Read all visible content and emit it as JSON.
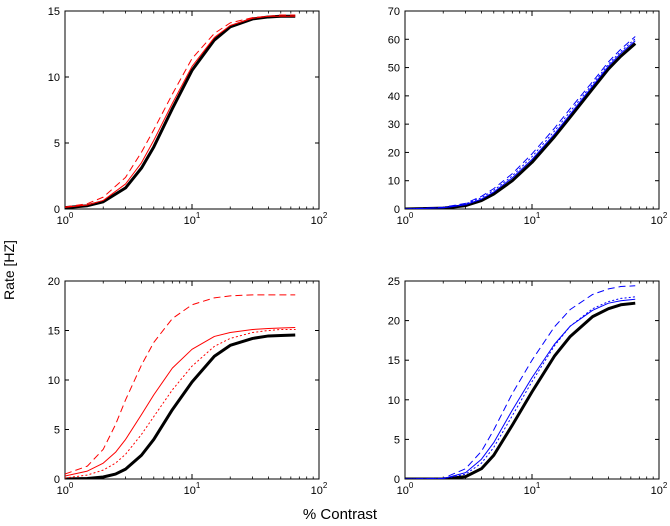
{
  "figure": {
    "ylabel": "Rate [HZ]",
    "xlabel": "% Contrast"
  },
  "chart_data": [
    {
      "type": "line",
      "position": "top-left",
      "xscale": "log",
      "xlim": [
        1,
        100
      ],
      "ylim": [
        0,
        15
      ],
      "xticks": [
        {
          "base": "10",
          "exp": "0"
        },
        {
          "base": "10",
          "exp": "1"
        },
        {
          "base": "10",
          "exp": "2"
        }
      ],
      "yticks": [
        "0",
        "5",
        "10",
        "15"
      ],
      "x": [
        1,
        1.5,
        2,
        3,
        4,
        5,
        7,
        10,
        15,
        20,
        30,
        40,
        50,
        65
      ],
      "series": [
        {
          "name": "black-solid",
          "color": "#000000",
          "style": "solid",
          "width": 3,
          "values": [
            0.1,
            0.25,
            0.55,
            1.6,
            3.1,
            4.7,
            7.6,
            10.5,
            12.8,
            13.8,
            14.4,
            14.55,
            14.6,
            14.6
          ]
        },
        {
          "name": "red-solid",
          "color": "#ff0000",
          "style": "solid",
          "width": 1,
          "values": [
            0.12,
            0.3,
            0.65,
            1.9,
            3.5,
            5.2,
            8.0,
            10.8,
            13.0,
            13.9,
            14.45,
            14.6,
            14.6,
            14.6
          ]
        },
        {
          "name": "red-dashed",
          "color": "#ff0000",
          "style": "dashed",
          "width": 1,
          "values": [
            0.15,
            0.4,
            0.9,
            2.4,
            4.3,
            6.0,
            8.7,
            11.4,
            13.3,
            14.1,
            14.5,
            14.6,
            14.7,
            14.7
          ]
        }
      ]
    },
    {
      "type": "line",
      "position": "top-right",
      "xscale": "log",
      "xlim": [
        1,
        100
      ],
      "ylim": [
        0,
        70
      ],
      "xticks": [
        {
          "base": "10",
          "exp": "0"
        },
        {
          "base": "10",
          "exp": "1"
        },
        {
          "base": "10",
          "exp": "2"
        }
      ],
      "yticks": [
        "0",
        "10",
        "20",
        "30",
        "40",
        "50",
        "60",
        "70"
      ],
      "x": [
        1,
        2,
        3,
        4,
        5,
        7,
        10,
        15,
        20,
        30,
        40,
        50,
        65
      ],
      "series": [
        {
          "name": "black-solid",
          "color": "#000000",
          "style": "solid",
          "width": 3,
          "values": [
            0,
            0.3,
            1.2,
            3,
            5.3,
            10,
            16.5,
            25.5,
            32.5,
            42.5,
            49.5,
            54,
            58.5
          ]
        },
        {
          "name": "blue-solid",
          "color": "#0000ff",
          "style": "solid",
          "width": 1,
          "values": [
            0,
            0.4,
            1.5,
            3.5,
            6,
            11,
            17.5,
            26.5,
            33.5,
            43.5,
            50.5,
            55,
            59.5
          ]
        },
        {
          "name": "blue-dashed",
          "color": "#0000ff",
          "style": "dashed",
          "width": 1,
          "values": [
            0,
            0.6,
            2,
            4.5,
            7.2,
            12.5,
            19.5,
            28.5,
            35.5,
            45,
            52,
            56.5,
            61
          ]
        },
        {
          "name": "blue-dotted",
          "color": "#0000ff",
          "style": "dotted",
          "width": 1,
          "values": [
            0,
            0.5,
            1.8,
            4,
            6.6,
            11.7,
            18.5,
            27.5,
            34.5,
            44.2,
            51.2,
            55.7,
            60.2
          ]
        }
      ]
    },
    {
      "type": "line",
      "position": "bottom-left",
      "xscale": "log",
      "xlim": [
        1,
        100
      ],
      "ylim": [
        0,
        20
      ],
      "xticks": [
        {
          "base": "10",
          "exp": "0"
        },
        {
          "base": "10",
          "exp": "1"
        },
        {
          "base": "10",
          "exp": "2"
        }
      ],
      "yticks": [
        "0",
        "5",
        "10",
        "15",
        "20"
      ],
      "x": [
        1,
        1.5,
        2,
        2.5,
        3,
        4,
        5,
        7,
        10,
        15,
        20,
        30,
        40,
        50,
        65
      ],
      "series": [
        {
          "name": "black-solid",
          "color": "#000000",
          "style": "solid",
          "width": 3,
          "values": [
            0,
            0.05,
            0.2,
            0.5,
            1,
            2.4,
            4,
            7,
            9.8,
            12.4,
            13.5,
            14.2,
            14.45,
            14.5,
            14.55
          ]
        },
        {
          "name": "red-solid",
          "color": "#ff0000",
          "style": "solid",
          "width": 1,
          "values": [
            0.3,
            0.8,
            1.6,
            2.7,
            4,
            6.5,
            8.5,
            11.2,
            13.1,
            14.4,
            14.8,
            15.1,
            15.2,
            15.25,
            15.3
          ]
        },
        {
          "name": "red-dashed",
          "color": "#ff0000",
          "style": "dashed",
          "width": 1,
          "values": [
            0.5,
            1.3,
            3,
            5.5,
            8,
            11.5,
            13.8,
            16.2,
            17.6,
            18.3,
            18.5,
            18.6,
            18.6,
            18.6,
            18.6
          ]
        },
        {
          "name": "red-dotted",
          "color": "#ff0000",
          "style": "dotted",
          "width": 1,
          "values": [
            0.1,
            0.4,
            0.9,
            1.6,
            2.5,
            4.5,
            6.3,
            9,
            11.4,
            13.4,
            14.2,
            14.8,
            15,
            15.1,
            15.1
          ]
        }
      ]
    },
    {
      "type": "line",
      "position": "bottom-right",
      "xscale": "log",
      "xlim": [
        1,
        100
      ],
      "ylim": [
        0,
        25
      ],
      "xticks": [
        {
          "base": "10",
          "exp": "0"
        },
        {
          "base": "10",
          "exp": "1"
        },
        {
          "base": "10",
          "exp": "2"
        }
      ],
      "yticks": [
        "0",
        "5",
        "10",
        "15",
        "20",
        "25"
      ],
      "x": [
        1,
        2,
        3,
        4,
        5,
        7,
        10,
        15,
        20,
        30,
        40,
        50,
        65
      ],
      "series": [
        {
          "name": "black-solid",
          "color": "#000000",
          "style": "solid",
          "width": 3,
          "values": [
            0,
            0,
            0.3,
            1.3,
            3,
            6.8,
            11,
            15.5,
            18,
            20.5,
            21.5,
            22,
            22.2
          ]
        },
        {
          "name": "blue-solid",
          "color": "#0000ff",
          "style": "solid",
          "width": 1,
          "values": [
            0,
            0.05,
            0.8,
            2.5,
            4.6,
            8.7,
            12.8,
            17,
            19.3,
            21.3,
            22.2,
            22.5,
            22.7
          ]
        },
        {
          "name": "blue-dashed",
          "color": "#0000ff",
          "style": "dashed",
          "width": 1,
          "values": [
            0,
            0.1,
            1.3,
            3.5,
            6.2,
            10.8,
            15,
            19.2,
            21.4,
            23.3,
            24,
            24.3,
            24.4
          ]
        },
        {
          "name": "blue-dotted",
          "color": "#0000ff",
          "style": "dotted",
          "width": 1,
          "values": [
            0,
            0.05,
            0.6,
            2,
            4,
            8,
            12.3,
            16.8,
            19.3,
            21.5,
            22.4,
            22.8,
            23
          ]
        }
      ]
    }
  ]
}
